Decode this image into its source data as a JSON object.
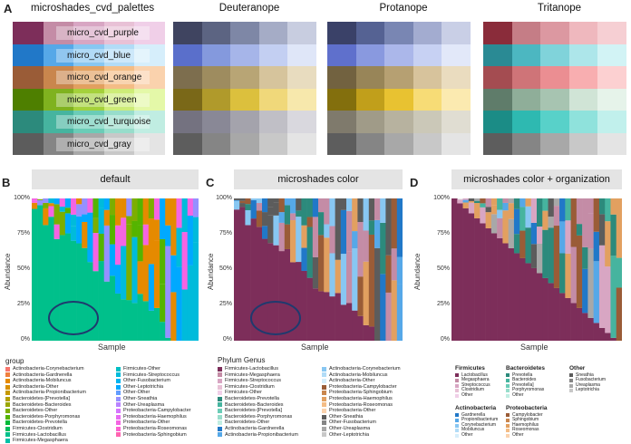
{
  "panels": {
    "a": {
      "letter": "A",
      "title": "microshades_cvd_palettes",
      "palettes": [
        {
          "name": "micro_cvd_purple",
          "colors": [
            "#7d2e5a",
            "#c48ca6",
            "#d8a6c3",
            "#e8c1d6",
            "#f0cfe8"
          ]
        },
        {
          "name": "micro_cvd_blue",
          "colors": [
            "#2178c8",
            "#56a8e8",
            "#88c7f2",
            "#b2dcf7",
            "#d6eefb"
          ]
        },
        {
          "name": "micro_cvd_orange",
          "colors": [
            "#9a5c37",
            "#c9864d",
            "#e2a060",
            "#f4bd86",
            "#fad2ad"
          ]
        },
        {
          "name": "micro_cvd_green",
          "colors": [
            "#4e7f00",
            "#7fb21f",
            "#a4d13b",
            "#cdec78",
            "#e4f8a8"
          ]
        },
        {
          "name": "micro_cvd_turquoise",
          "colors": [
            "#2c8a7c",
            "#46b49f",
            "#6bccb7",
            "#98ddcb",
            "#c0ede2"
          ]
        },
        {
          "name": "micro_cvd_gray",
          "colors": [
            "#5c5c5c",
            "#858585",
            "#a8a8a8",
            "#c8c8c8",
            "#e4e4e4"
          ]
        }
      ],
      "simulations": [
        {
          "title": "Deuteranope",
          "rows": [
            [
              "#3f4460",
              "#5c6482",
              "#7e87a6",
              "#a5acc6",
              "#c8cde0"
            ],
            [
              "#5a6fcb",
              "#8499dd",
              "#a6b5e9",
              "#c3cff2",
              "#dfe6f8"
            ],
            [
              "#7d6e4e",
              "#9e8c5f",
              "#b8a575",
              "#d6c49c",
              "#e8dcbf"
            ],
            [
              "#7a6818",
              "#b09a2b",
              "#dcc03d",
              "#f0d87a",
              "#f7e8ac"
            ],
            [
              "#747280",
              "#898896",
              "#a4a3ac",
              "#c0bfc6",
              "#d9d8de"
            ],
            [
              "#5d5d5d",
              "#858585",
              "#a8a8a8",
              "#c8c8c8",
              "#e4e4e4"
            ]
          ]
        },
        {
          "title": "Protanope",
          "rows": [
            [
              "#3a4168",
              "#556293",
              "#7986b3",
              "#a3acd0",
              "#c9cfe6"
            ],
            [
              "#5f70cc",
              "#8999df",
              "#abb7ea",
              "#c7d1f3",
              "#e2e8f9"
            ],
            [
              "#726240",
              "#988558",
              "#b6a072",
              "#d7c39c",
              "#eadcbf"
            ],
            [
              "#836f0d",
              "#c19f1b",
              "#e8c231",
              "#f7dc76",
              "#fbeab0"
            ],
            [
              "#7f7a6c",
              "#a09b88",
              "#b7b29f",
              "#cbc8b8",
              "#e0ddd2"
            ],
            [
              "#5d5d5d",
              "#858585",
              "#a8a8a8",
              "#c8c8c8",
              "#e4e4e4"
            ]
          ]
        },
        {
          "title": "Tritanope",
          "rows": [
            [
              "#8a2c3a",
              "#c57d86",
              "#dc98a1",
              "#efb8be",
              "#f6cfd3"
            ],
            [
              "#2a8a94",
              "#4cb7c1",
              "#80d3da",
              "#ade6ea",
              "#d2f3f5"
            ],
            [
              "#a44c51",
              "#cf7478",
              "#eb8e92",
              "#f8aeb0",
              "#fcd0d1"
            ],
            [
              "#5f7c6a",
              "#8fae99",
              "#a7c4b1",
              "#d0e4d6",
              "#e6f3ea"
            ],
            [
              "#1b8c86",
              "#2eb9b1",
              "#58d1c9",
              "#8fe2dc",
              "#c1f0ec"
            ],
            [
              "#5d5d5d",
              "#858585",
              "#a8a8a8",
              "#c8c8c8",
              "#e4e4e4"
            ]
          ]
        }
      ]
    },
    "b": {
      "letter": "B",
      "title": "default",
      "ylabel": "Abundance",
      "xlabel": "Sample",
      "yticks": [
        "100%",
        "75%",
        "50%",
        "25%",
        "0%"
      ],
      "legend_title": "group",
      "legend_col1": [
        {
          "label": "Actinobacteria-Corynebacterium",
          "color": "#f8766d"
        },
        {
          "label": "Actinobacteria-Gardnerella",
          "color": "#ef7f3d"
        },
        {
          "label": "Actinobacteria-Mobiluncus",
          "color": "#e58a00"
        },
        {
          "label": "Actinobacteria-Other",
          "color": "#d89000"
        },
        {
          "label": "Actinobacteria-Propionibacterium",
          "color": "#c69900"
        },
        {
          "label": "Bacteroidetes-[Prevotella]",
          "color": "#b3a000"
        },
        {
          "label": "Bacteroidetes-Bacteroides",
          "color": "#9aa600"
        },
        {
          "label": "Bacteroidetes-Other",
          "color": "#7cae00"
        },
        {
          "label": "Bacteroidetes-Porphyromonas",
          "color": "#55b400"
        },
        {
          "label": "Bacteroidetes-Prevotella",
          "color": "#00ba38"
        },
        {
          "label": "Firmicutes-Clostridium",
          "color": "#00bd5c"
        },
        {
          "label": "Firmicutes-Lactobacillus",
          "color": "#00c08b"
        },
        {
          "label": "Firmicutes-Megasphaera",
          "color": "#00c1a7"
        }
      ],
      "legend_col2": [
        {
          "label": "Firmicutes-Other",
          "color": "#00bfc4"
        },
        {
          "label": "Firmicutes-Streptococcus",
          "color": "#00bbdb"
        },
        {
          "label": "Other-Fusobacterium",
          "color": "#00b4ef"
        },
        {
          "label": "Other-Leptotrichia",
          "color": "#00a9ff"
        },
        {
          "label": "Other-Other",
          "color": "#619cff"
        },
        {
          "label": "Other-Sneathia",
          "color": "#9590ff"
        },
        {
          "label": "Other-Ureaplasma",
          "color": "#b983ff"
        },
        {
          "label": "Proteobacteria-Campylobacter",
          "color": "#d575fe"
        },
        {
          "label": "Proteobacteria-Haemophilus",
          "color": "#e76bf3"
        },
        {
          "label": "Proteobacteria-Other",
          "color": "#f564e3"
        },
        {
          "label": "Proteobacteria-Roseomonas",
          "color": "#fd61d1"
        },
        {
          "label": "Proteobacteria-Sphingobium",
          "color": "#ff64b0"
        }
      ]
    },
    "c": {
      "letter": "C",
      "title": "microshades color",
      "ylabel": "Abundance",
      "xlabel": "Sample",
      "yticks": [
        "100%",
        "75%",
        "50%",
        "25%",
        "0%"
      ],
      "legend_title": "Phylum Genus",
      "legend_col1": [
        {
          "label": "Firmicutes-Lactobacillus",
          "color": "#7d2e5a"
        },
        {
          "label": "Firmicutes-Megasphaera",
          "color": "#c48ca6"
        },
        {
          "label": "Firmicutes-Streptococcus",
          "color": "#d8a6c3"
        },
        {
          "label": "Firmicutes-Clostridium",
          "color": "#e8c1d6"
        },
        {
          "label": "Firmicutes-Other",
          "color": "#f0cfe8"
        },
        {
          "label": "Bacteroidetes-Prevotella",
          "color": "#2c8a7c"
        },
        {
          "label": "Bacteroidetes-Bacteroides",
          "color": "#46b49f"
        },
        {
          "label": "Bacteroidetes-[Prevotella]",
          "color": "#6bccb7"
        },
        {
          "label": "Bacteroidetes-Porphyromonas",
          "color": "#98ddcb"
        },
        {
          "label": "Bacteroidetes-Other",
          "color": "#c0ede2"
        },
        {
          "label": "Actinobacteria-Gardnerella",
          "color": "#2178c8"
        },
        {
          "label": "Actinobacteria-Propionibacterium",
          "color": "#56a8e8"
        }
      ],
      "legend_col2": [
        {
          "label": "Actinobacteria-Corynebacterium",
          "color": "#88c7f2"
        },
        {
          "label": "Actinobacteria-Mobiluncus",
          "color": "#b2dcf7"
        },
        {
          "label": "Actinobacteria-Other",
          "color": "#d6eefb"
        },
        {
          "label": "Proteobacteria-Campylobacter",
          "color": "#9a5c37"
        },
        {
          "label": "Proteobacteria-Sphingobium",
          "color": "#c9864d"
        },
        {
          "label": "Proteobacteria-Haemophilus",
          "color": "#e2a060"
        },
        {
          "label": "Proteobacteria-Roseomonas",
          "color": "#f4bd86"
        },
        {
          "label": "Proteobacteria-Other",
          "color": "#fad2ad"
        },
        {
          "label": "Other-Sneathia",
          "color": "#5c5c5c"
        },
        {
          "label": "Other-Fusobacterium",
          "color": "#858585"
        },
        {
          "label": "Other-Ureaplasma",
          "color": "#a8a8a8"
        },
        {
          "label": "Other-Leptotrichia",
          "color": "#c8c8c8"
        }
      ]
    },
    "d": {
      "letter": "D",
      "title": "microshades color + organization",
      "ylabel": "Abundance",
      "xlabel": "Sample",
      "yticks": [
        "100%",
        "75%",
        "50%",
        "25%",
        "0%"
      ],
      "groups": [
        {
          "name": "Firmicutes",
          "items": [
            {
              "label": "Lactobacillus",
              "color": "#7d2e5a"
            },
            {
              "label": "Megasphaera",
              "color": "#c48ca6"
            },
            {
              "label": "Streptococcus",
              "color": "#d8a6c3"
            },
            {
              "label": "Clostridium",
              "color": "#e8c1d6"
            },
            {
              "label": "Other",
              "color": "#f0cfe8"
            }
          ]
        },
        {
          "name": "Bacteroidetes",
          "items": [
            {
              "label": "Prevotella",
              "color": "#2c8a7c"
            },
            {
              "label": "Bacteroides",
              "color": "#46b49f"
            },
            {
              "label": "Prevotella]",
              "color": "#6bccb7"
            },
            {
              "label": "Porphyromonas",
              "color": "#98ddcb"
            },
            {
              "label": "Other",
              "color": "#c0ede2"
            }
          ]
        },
        {
          "name": "Other",
          "items": [
            {
              "label": "Sneathia",
              "color": "#5c5c5c"
            },
            {
              "label": "Fusobacterium",
              "color": "#858585"
            },
            {
              "label": "Ureaplasma",
              "color": "#a8a8a8"
            },
            {
              "label": "Leptotrichia",
              "color": "#c8c8c8"
            }
          ]
        },
        {
          "name": "Actinobacteria",
          "items": [
            {
              "label": "Gardnerella",
              "color": "#2178c8"
            },
            {
              "label": "Propionibacterium",
              "color": "#56a8e8"
            },
            {
              "label": "Corynebacterium",
              "color": "#88c7f2"
            },
            {
              "label": "Mobiluncus",
              "color": "#b2dcf7"
            },
            {
              "label": "Other",
              "color": "#d6eefb"
            }
          ]
        },
        {
          "name": "Proteobacteria",
          "items": [
            {
              "label": "Campylobacter",
              "color": "#9a5c37"
            },
            {
              "label": "Sphingobium",
              "color": "#c9864d"
            },
            {
              "label": "Haemophilus",
              "color": "#e2a060"
            },
            {
              "label": "Roseomonas",
              "color": "#f4bd86"
            },
            {
              "label": "Other",
              "color": "#fad2ad"
            }
          ]
        }
      ]
    }
  }
}
